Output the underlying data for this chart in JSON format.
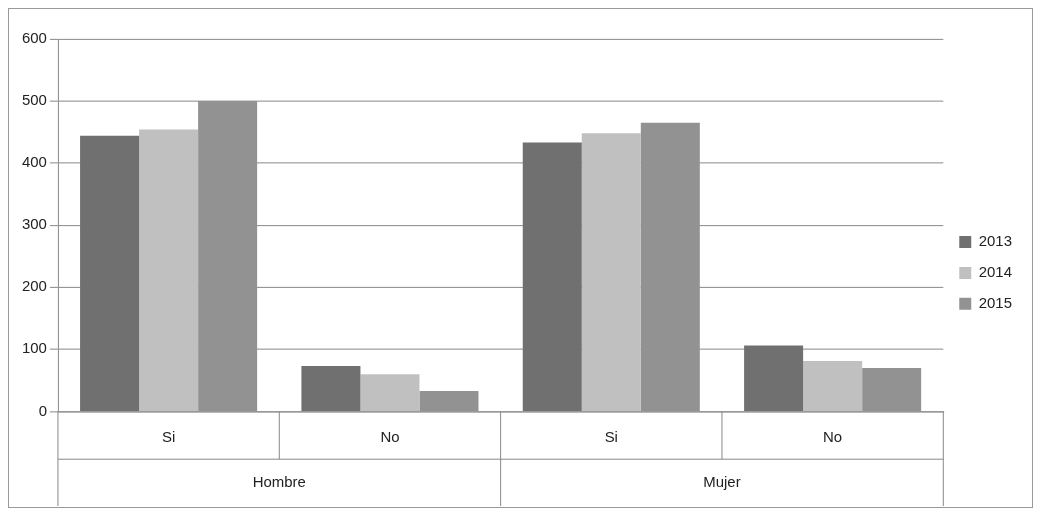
{
  "chart_data": {
    "type": "bar",
    "categories": [
      "Si",
      "No",
      "Si",
      "No"
    ],
    "series": [
      {
        "name": "2013",
        "color": "#707070",
        "values": [
          444,
          73,
          433,
          106
        ]
      },
      {
        "name": "2014",
        "color": "#c0c0c0",
        "values": [
          454,
          60,
          448,
          81
        ]
      },
      {
        "name": "2015",
        "color": "#929292",
        "values": [
          500,
          33,
          465,
          70
        ]
      }
    ],
    "ylim": [
      0,
      600
    ],
    "yticks": [
      0,
      100,
      200,
      300,
      400,
      500,
      600
    ],
    "grid": "y",
    "legend": "right",
    "annotations": [
      "Hombre",
      "Mujer"
    ]
  }
}
